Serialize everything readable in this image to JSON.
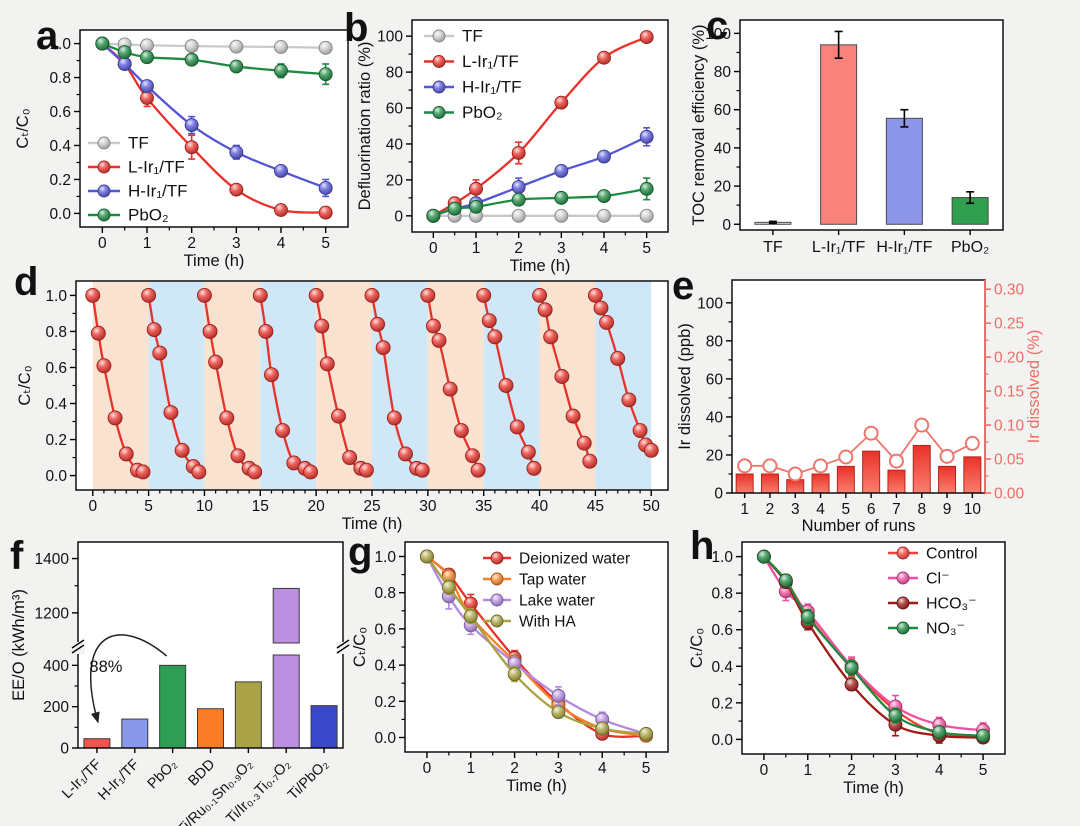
{
  "chart_data": [
    {
      "id": "a",
      "panel_letter": "a",
      "type": "line",
      "xlabel": "Time (h)",
      "ylabel": "Cₜ/C₀",
      "x": [
        0,
        0.5,
        1,
        2,
        3,
        4,
        5
      ],
      "xticks": [
        0,
        1,
        2,
        3,
        4,
        5
      ],
      "xlim": [
        -0.5,
        5.5
      ],
      "yticks": [
        0.0,
        0.2,
        0.4,
        0.6,
        0.8,
        1.0
      ],
      "ylim": [
        -0.08,
        1.08
      ],
      "ytick_decimals": 1,
      "legend_position": "bottom-left",
      "series": [
        {
          "name": "TF",
          "color": "#c9c9c9",
          "values": [
            1.0,
            0.995,
            0.99,
            0.985,
            0.982,
            0.98,
            0.975
          ],
          "errors": [
            0.005,
            0.01,
            0.01,
            0.01,
            0.01,
            0.01,
            0.015
          ]
        },
        {
          "name": "L-Ir₁/TF",
          "color": "#e8312a",
          "values": [
            1.0,
            0.88,
            0.68,
            0.39,
            0.14,
            0.02,
            0.005
          ],
          "errors": [
            0,
            0.02,
            0.05,
            0.07,
            0.03,
            0.02,
            0.01
          ]
        },
        {
          "name": "H-Ir₁/TF",
          "color": "#5456d8",
          "values": [
            1.0,
            0.88,
            0.75,
            0.52,
            0.36,
            0.25,
            0.15
          ],
          "errors": [
            0,
            0.02,
            0.03,
            0.05,
            0.04,
            0.03,
            0.05
          ]
        },
        {
          "name": "PbO₂",
          "color": "#1d8a42",
          "values": [
            1.0,
            0.95,
            0.92,
            0.905,
            0.865,
            0.84,
            0.82
          ],
          "errors": [
            0,
            0.02,
            0.015,
            0.02,
            0.03,
            0.04,
            0.06
          ]
        }
      ]
    },
    {
      "id": "b",
      "panel_letter": "b",
      "type": "line",
      "xlabel": "Time (h)",
      "ylabel": "Defluorination ratio (%)",
      "x": [
        0,
        0.5,
        1,
        2,
        3,
        4,
        5
      ],
      "xticks": [
        0,
        1,
        2,
        3,
        4,
        5
      ],
      "xlim": [
        -0.5,
        5.5
      ],
      "yticks": [
        0,
        20,
        40,
        60,
        80,
        100
      ],
      "ylim": [
        -9,
        109
      ],
      "ytick_decimals": 0,
      "legend_position": "top-left",
      "series": [
        {
          "name": "TF",
          "color": "#c9c9c9",
          "values": [
            0,
            0,
            0,
            0,
            0,
            0,
            0
          ],
          "errors": [
            1,
            1,
            1,
            1,
            1,
            1,
            1
          ]
        },
        {
          "name": "L-Ir₁/TF",
          "color": "#e8312a",
          "values": [
            0,
            7,
            15,
            35,
            63,
            88,
            99.5
          ],
          "errors": [
            1,
            2,
            5,
            6,
            3,
            2,
            2
          ]
        },
        {
          "name": "H-Ir₁/TF",
          "color": "#5456d8",
          "values": [
            0,
            4,
            7,
            16,
            25,
            33,
            44
          ],
          "errors": [
            1,
            2,
            3,
            5,
            3,
            2,
            5
          ]
        },
        {
          "name": "PbO₂",
          "color": "#1d8a42",
          "values": [
            0,
            4,
            5,
            9,
            10,
            11,
            15
          ],
          "errors": [
            1,
            2,
            2,
            3,
            2,
            3,
            6
          ]
        }
      ]
    },
    {
      "id": "c",
      "panel_letter": "c",
      "type": "bar",
      "ylabel": "TOC removal efficiency (%)",
      "categories": [
        "TF",
        "L-Ir₁/TF",
        "H-Ir₁/TF",
        "PbO₂"
      ],
      "values": [
        1,
        94,
        55.5,
        14
      ],
      "errors": [
        0.5,
        7,
        4.5,
        3
      ],
      "colors": [
        "#dcdcdc",
        "#f8837b",
        "#8e96ea",
        "#2f9e4f"
      ],
      "yticks": [
        0,
        20,
        40,
        60,
        80,
        100
      ],
      "ylim": [
        -3,
        107
      ],
      "ytick_decimals": 0
    },
    {
      "id": "d",
      "panel_letter": "d",
      "type": "cycles",
      "xlabel": "Time (h)",
      "ylabel": "Cₜ/C₀",
      "xticks": [
        0,
        5,
        10,
        15,
        20,
        25,
        30,
        35,
        40,
        45,
        50
      ],
      "xlim": [
        -1.5,
        51.5
      ],
      "yticks": [
        0.0,
        0.2,
        0.4,
        0.6,
        0.8,
        1.0
      ],
      "ylim": [
        -0.08,
        1.08
      ],
      "ytick_decimals": 1,
      "color": "#e8312a",
      "cycle_length": 5,
      "band_colors": [
        "#f9e2d0",
        "#cfe7f6"
      ],
      "cycles": [
        {
          "start": 0,
          "offsets": [
            0,
            0.5,
            1,
            2,
            3,
            4,
            4.5
          ],
          "values": [
            1.0,
            0.79,
            0.61,
            0.32,
            0.12,
            0.03,
            0.02
          ]
        },
        {
          "start": 5,
          "offsets": [
            0,
            0.5,
            1,
            2,
            3,
            4,
            4.5
          ],
          "values": [
            1.0,
            0.81,
            0.68,
            0.35,
            0.14,
            0.05,
            0.02
          ]
        },
        {
          "start": 10,
          "offsets": [
            0,
            0.5,
            1,
            2,
            3,
            4,
            4.5
          ],
          "values": [
            1.0,
            0.8,
            0.63,
            0.32,
            0.11,
            0.04,
            0.02
          ]
        },
        {
          "start": 15,
          "offsets": [
            0,
            0.5,
            1,
            2,
            3,
            4,
            4.5
          ],
          "values": [
            1.0,
            0.8,
            0.56,
            0.25,
            0.07,
            0.04,
            0.02
          ]
        },
        {
          "start": 20,
          "offsets": [
            0,
            0.5,
            1,
            2,
            3,
            4,
            4.5
          ],
          "values": [
            1.0,
            0.83,
            0.62,
            0.33,
            0.1,
            0.04,
            0.03
          ]
        },
        {
          "start": 25,
          "offsets": [
            0,
            0.5,
            1,
            2,
            3,
            4,
            4.5
          ],
          "values": [
            1.0,
            0.84,
            0.71,
            0.32,
            0.12,
            0.04,
            0.03
          ]
        },
        {
          "start": 30,
          "offsets": [
            0,
            0.5,
            1,
            2,
            3,
            4,
            4.5
          ],
          "values": [
            1.0,
            0.83,
            0.75,
            0.48,
            0.25,
            0.11,
            0.03
          ]
        },
        {
          "start": 35,
          "offsets": [
            0,
            0.5,
            1,
            2,
            3,
            4,
            4.5
          ],
          "values": [
            1.0,
            0.86,
            0.77,
            0.5,
            0.27,
            0.13,
            0.04
          ]
        },
        {
          "start": 40,
          "offsets": [
            0,
            0.5,
            1,
            2,
            3,
            4,
            4.5
          ],
          "values": [
            1.0,
            0.92,
            0.77,
            0.55,
            0.33,
            0.18,
            0.08
          ]
        },
        {
          "start": 45,
          "offsets": [
            0,
            0.5,
            1,
            2,
            3,
            4,
            4.5,
            5
          ],
          "values": [
            1.0,
            0.93,
            0.85,
            0.65,
            0.42,
            0.25,
            0.17,
            0.14
          ]
        }
      ]
    },
    {
      "id": "e",
      "panel_letter": "e",
      "type": "bar-line",
      "xlabel": "Number of runs",
      "ylabel_left": "Ir dissolved (ppb)",
      "ylabel_right": "Ir dissolved (%)",
      "categories": [
        1,
        2,
        3,
        4,
        5,
        6,
        7,
        8,
        9,
        10
      ],
      "bar_values_ppb": [
        10,
        10,
        7,
        10,
        14,
        22,
        12,
        25,
        14,
        19
      ],
      "line_values_pct": [
        0.04,
        0.04,
        0.028,
        0.04,
        0.053,
        0.088,
        0.047,
        0.1,
        0.054,
        0.073
      ],
      "yticks_left": [
        0,
        20,
        40,
        60,
        80,
        100
      ],
      "ylim_left": [
        0,
        112
      ],
      "ytick_decimals_left": 0,
      "yticks_right": [
        0.0,
        0.05,
        0.1,
        0.15,
        0.2,
        0.25,
        0.3
      ],
      "ylim_right": [
        0,
        0.3136
      ],
      "ytick_decimals_right": 2,
      "bar_gradient": [
        "#e93229",
        "#fa7f6f"
      ],
      "bar_stroke": "#b3241c",
      "line_color": "#f0766d",
      "right_axis_color": "#ef6d64"
    },
    {
      "id": "f",
      "panel_letter": "f",
      "type": "bar-broken",
      "ylabel": "EE/O (kWh/m³)",
      "categories": [
        "L-Ir₁/TF",
        "H-Ir₁/TF",
        "PbO₂",
        "BDD",
        "Ti/Ru₀.₁Sn₀.₉O₂",
        "Ti/Ir₀.₃Ti₀.₇O₂",
        "Ti/PbO₂"
      ],
      "values": [
        45,
        140,
        400,
        190,
        320,
        1290,
        205
      ],
      "colors": [
        "#f2544d",
        "#8b97e8",
        "#2e9e55",
        "#f97c28",
        "#aaa348",
        "#bd8fe0",
        "#3c48cc"
      ],
      "yticks_lower": [
        0,
        200,
        400
      ],
      "yticks_upper": [
        1200,
        1400
      ],
      "ylim_lower": [
        0,
        450
      ],
      "ylim_upper": [
        1100,
        1450
      ],
      "annotation": "88%"
    },
    {
      "id": "g",
      "panel_letter": "g",
      "type": "line",
      "xlabel": "Time (h)",
      "ylabel": "Cₜ/C₀",
      "x": [
        0,
        0.5,
        1,
        2,
        3,
        4,
        5
      ],
      "xticks": [
        0,
        1,
        2,
        3,
        4,
        5
      ],
      "xlim": [
        -0.5,
        5.5
      ],
      "yticks": [
        0.0,
        0.2,
        0.4,
        0.6,
        0.8,
        1.0
      ],
      "ylim": [
        -0.08,
        1.08
      ],
      "ytick_decimals": 1,
      "legend_position": "top-right",
      "series": [
        {
          "name": "Deionized water",
          "color": "#e8312a",
          "values": [
            1.0,
            0.9,
            0.74,
            0.44,
            0.19,
            0.02,
            0.01
          ],
          "errors": [
            0,
            0.03,
            0.05,
            0.04,
            0.03,
            0.02,
            0.01
          ]
        },
        {
          "name": "Tap water",
          "color": "#f5822a",
          "values": [
            1.0,
            0.89,
            0.67,
            0.42,
            0.18,
            0.05,
            0.01
          ],
          "errors": [
            0,
            0.03,
            0.04,
            0.03,
            0.03,
            0.03,
            0.02
          ]
        },
        {
          "name": "Lake water",
          "color": "#b48ae0",
          "values": [
            1.0,
            0.78,
            0.62,
            0.41,
            0.23,
            0.1,
            0.02
          ],
          "errors": [
            0,
            0.07,
            0.05,
            0.03,
            0.05,
            0.04,
            0.02
          ]
        },
        {
          "name": "With HA",
          "color": "#a8a23f",
          "values": [
            1.0,
            0.83,
            0.67,
            0.35,
            0.14,
            0.05,
            0.02
          ],
          "errors": [
            0,
            0.04,
            0.04,
            0.04,
            0.03,
            0.03,
            0.02
          ]
        }
      ]
    },
    {
      "id": "h",
      "panel_letter": "h",
      "type": "line",
      "xlabel": "Time (h)",
      "ylabel": "Cₜ/C₀",
      "x": [
        0,
        0.5,
        1,
        2,
        3,
        4,
        5
      ],
      "xticks": [
        0,
        1,
        2,
        3,
        4,
        5
      ],
      "xlim": [
        -0.5,
        5.5
      ],
      "yticks": [
        0.0,
        0.2,
        0.4,
        0.6,
        0.8,
        1.0
      ],
      "ylim": [
        -0.08,
        1.08
      ],
      "ytick_decimals": 1,
      "legend_position": "top-right",
      "series": [
        {
          "name": "Control",
          "color": "#f04038",
          "values": [
            1.0,
            0.87,
            0.68,
            0.39,
            0.16,
            0.03,
            0.02
          ],
          "errors": [
            0,
            0.03,
            0.04,
            0.05,
            0.04,
            0.04,
            0.03
          ]
        },
        {
          "name": "Cl⁻",
          "color": "#f24fa2",
          "values": [
            1.0,
            0.81,
            0.7,
            0.4,
            0.18,
            0.08,
            0.05
          ],
          "errors": [
            0,
            0.05,
            0.04,
            0.05,
            0.06,
            0.04,
            0.04
          ]
        },
        {
          "name": "HCO₃⁻",
          "color": "#a11a17",
          "values": [
            1.0,
            0.86,
            0.64,
            0.3,
            0.08,
            0.02,
            0.01
          ],
          "errors": [
            0,
            0.03,
            0.04,
            0.03,
            0.06,
            0.04,
            0.02
          ]
        },
        {
          "name": "NO₃⁻",
          "color": "#1f8a3f",
          "values": [
            1.0,
            0.87,
            0.67,
            0.39,
            0.13,
            0.04,
            0.02
          ],
          "errors": [
            0,
            0.03,
            0.04,
            0.04,
            0.04,
            0.03,
            0.02
          ]
        }
      ]
    }
  ]
}
